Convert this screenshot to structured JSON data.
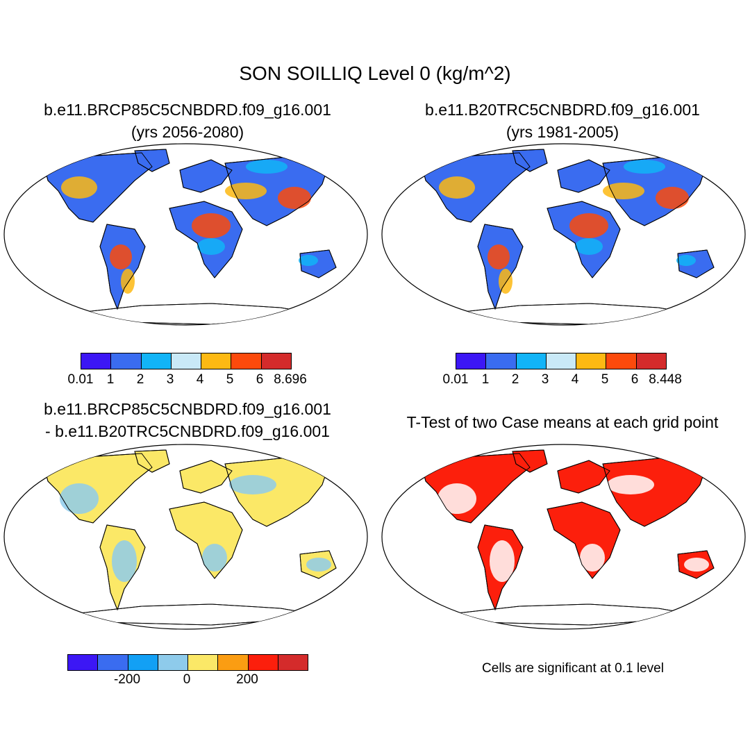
{
  "title": "SON SOILLIQ Level 0 (kg/m^2)",
  "panels": {
    "top_left": {
      "title1": "b.e11.BRCP85C5CNBDRD.f09_g16.001",
      "title2": "(yrs 2056-2080)"
    },
    "top_right": {
      "title1": "b.e11.B20TRC5CNBDRD.f09_g16.001",
      "title2": "(yrs 1981-2005)"
    },
    "bottom_left": {
      "title1": "b.e11.BRCP85C5CNBDRD.f09_g16.001",
      "title2": "- b.e11.B20TRC5CNBDRD.f09_g16.001"
    },
    "bottom_right": {
      "title1": "T-Test of two Case means at each grid point",
      "note": "Cells are significant at 0.1 level"
    }
  },
  "colorbars": {
    "top_left": {
      "colors": [
        "#3c17f5",
        "#3a6cf0",
        "#12b4f7",
        "#c9e9f7",
        "#fdb913",
        "#fc4a0c",
        "#d42b2b"
      ],
      "labels": [
        "0.01",
        "1",
        "2",
        "3",
        "4",
        "5",
        "6",
        "8.696"
      ]
    },
    "top_right": {
      "colors": [
        "#3c17f5",
        "#3a6cf0",
        "#12b4f7",
        "#c9e9f7",
        "#fdb913",
        "#fc4a0c",
        "#d42b2b"
      ],
      "labels": [
        "0.01",
        "1",
        "2",
        "3",
        "4",
        "5",
        "6",
        "8.448"
      ]
    },
    "bottom_left": {
      "colors": [
        "#3c17f5",
        "#3a6cf0",
        "#12a0f5",
        "#8ecbeb",
        "#fbe867",
        "#fb9d12",
        "#fc1f0c",
        "#d42b2b"
      ],
      "labels": [
        "-200",
        "0",
        "200"
      ]
    }
  },
  "map_fills": {
    "top_left": {
      "ocean": "#ffffff",
      "land": "#3a6cf0",
      "hot": "#fc4a0c",
      "warm": "#fdb913",
      "cool": "#12b4f7"
    },
    "top_right": {
      "ocean": "#ffffff",
      "land": "#3a6cf0",
      "hot": "#fc4a0c",
      "warm": "#fdb913",
      "cool": "#12b4f7"
    },
    "bottom_left": {
      "ocean": "#ffffff",
      "land": "#fbe867",
      "alt": "#8ecbeb"
    },
    "bottom_right": {
      "ocean": "#ffffff",
      "land": "#fc1f0c",
      "alt": "#ffffff"
    }
  }
}
